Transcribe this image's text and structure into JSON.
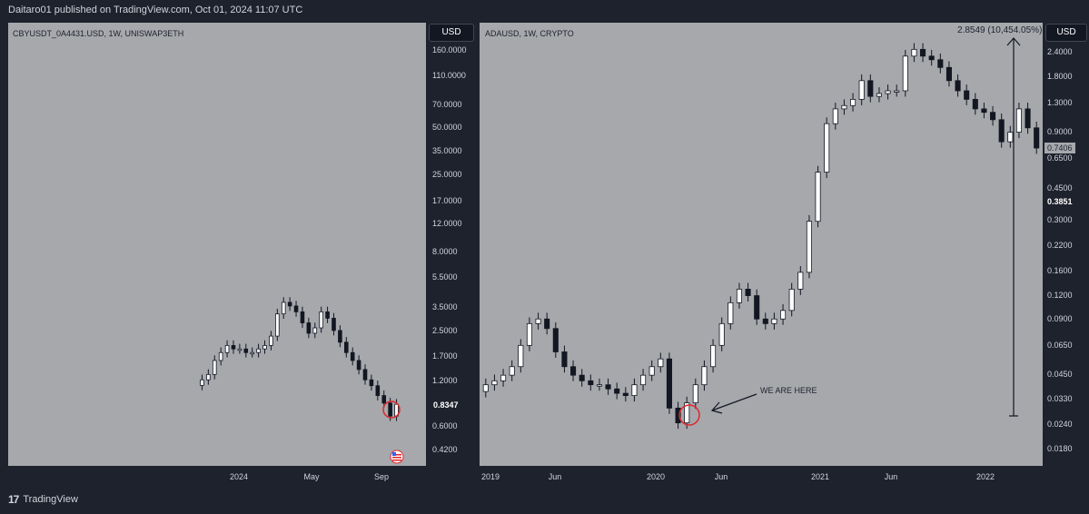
{
  "header": {
    "published": "Daitaro01 published on TradingView.com, Oct 01, 2024 11:07 UTC"
  },
  "footer": {
    "brand": "TradingView",
    "logo": "17"
  },
  "left_chart": {
    "symbol": "CBYUSDT_0A4431.USD, 1W, UNISWAP3ETH",
    "currency_button": "USD",
    "y_ticks": [
      "160.0000",
      "110.0000",
      "70.0000",
      "50.0000",
      "35.0000",
      "25.0000",
      "17.0000",
      "12.0000",
      "8.0000",
      "5.5000",
      "3.5000",
      "2.5000",
      "1.7000",
      "1.2000",
      "0.8347",
      "0.6000",
      "0.4200"
    ],
    "last_price": "0.8347",
    "x_ticks": [
      "2024",
      "May",
      "Sep"
    ],
    "flag_icon": "us-flag-icon"
  },
  "right_chart": {
    "symbol": "ADAUSD, 1W, CRYPTO",
    "currency_button": "USD",
    "y_ticks": [
      "2.4000",
      "1.8000",
      "1.3000",
      "0.9000",
      "0.6500",
      "0.4500",
      "0.3000",
      "0.2200",
      "0.1600",
      "0.1200",
      "0.0900",
      "0.0650",
      "0.0450",
      "0.0330",
      "0.0240",
      "0.0180"
    ],
    "price_tag_current": "0.7406",
    "price_tag_target": "0.3851",
    "x_ticks": [
      "2019",
      "Jun",
      "2020",
      "Jun",
      "2021",
      "Jun",
      "2022"
    ],
    "measure_label": "2.8549 (10,454.05%)",
    "annotation": "WE ARE HERE"
  },
  "colors": {
    "background": "#1e222d",
    "panel": "#a6a8ac",
    "candle": "#131722",
    "circle": "#e0262a",
    "text": "#d1d4dc"
  },
  "chart_data": [
    {
      "type": "candlestick",
      "title": "CBYUSDT_0A4431.USD, 1W, UNISWAP3ETH",
      "scale": "log",
      "ylim": [
        0.42,
        160
      ],
      "x_ticks": [
        "2024",
        "May",
        "Sep"
      ],
      "close_path_approx": [
        1.2,
        1.3,
        1.6,
        1.8,
        2.0,
        1.9,
        1.9,
        1.8,
        1.8,
        1.9,
        2.0,
        2.3,
        3.2,
        3.8,
        3.6,
        3.3,
        2.8,
        2.4,
        2.6,
        3.3,
        3.0,
        2.5,
        2.1,
        1.8,
        1.6,
        1.4,
        1.2,
        1.1,
        0.95,
        0.85,
        0.7,
        0.8347
      ]
    },
    {
      "type": "candlestick",
      "title": "ADAUSD, 1W, CRYPTO",
      "scale": "log",
      "ylim": [
        0.018,
        2.4
      ],
      "x_ticks": [
        "2019",
        "Jun",
        "2020",
        "Jun",
        "2021",
        "Jun",
        "2022"
      ],
      "close_path_approx": [
        0.04,
        0.042,
        0.045,
        0.05,
        0.065,
        0.085,
        0.09,
        0.08,
        0.06,
        0.05,
        0.045,
        0.042,
        0.04,
        0.04,
        0.038,
        0.036,
        0.035,
        0.04,
        0.045,
        0.05,
        0.055,
        0.03,
        0.025,
        0.032,
        0.04,
        0.05,
        0.065,
        0.085,
        0.11,
        0.13,
        0.12,
        0.09,
        0.085,
        0.09,
        0.1,
        0.13,
        0.16,
        0.3,
        0.55,
        1.0,
        1.2,
        1.25,
        1.35,
        1.7,
        1.4,
        1.45,
        1.5,
        1.5,
        2.3,
        2.5,
        2.3,
        2.2,
        2.0,
        1.7,
        1.5,
        1.35,
        1.2,
        1.15,
        1.05,
        0.8,
        0.9,
        1.2,
        0.95,
        0.7406
      ],
      "annotations": [
        "WE ARE HERE",
        "2.8549 (10,454.05%)"
      ],
      "current_price": 0.7406,
      "marked_price": 0.3851
    }
  ]
}
